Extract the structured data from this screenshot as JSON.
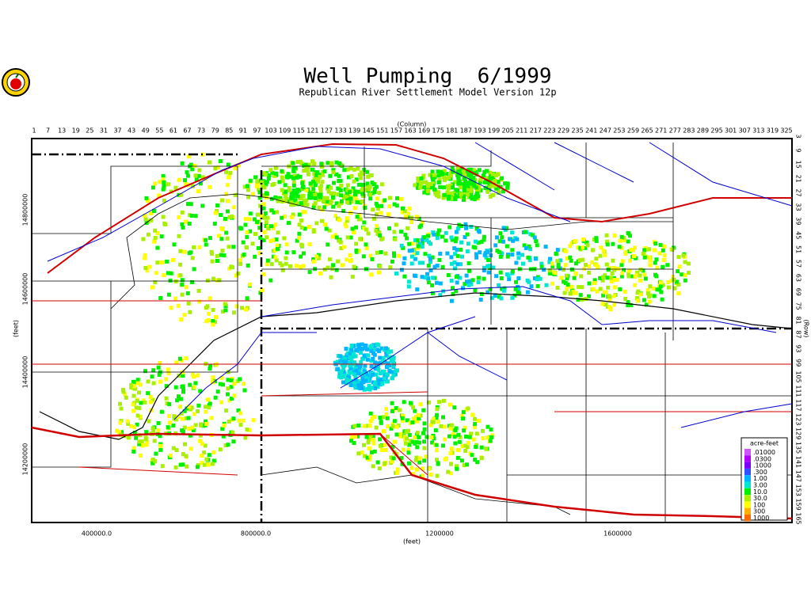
{
  "header": {
    "title": "Well Pumping  6/1999",
    "subtitle": "Republican River Settlement Model Version 12p"
  },
  "axes": {
    "column_label": "(Column)",
    "row_label": "(Row)",
    "x_label": "(feet)",
    "y_label": "(feet)",
    "column_ticks": [
      1,
      7,
      13,
      19,
      25,
      31,
      37,
      43,
      49,
      55,
      61,
      67,
      73,
      79,
      85,
      91,
      97,
      103,
      109,
      115,
      121,
      127,
      133,
      139,
      145,
      151,
      157,
      163,
      169,
      175,
      181,
      187,
      193,
      199,
      205,
      211,
      217,
      223,
      229,
      235,
      241,
      247,
      253,
      259,
      265,
      271,
      277,
      283,
      289,
      295,
      301,
      307,
      313,
      319,
      325
    ],
    "row_ticks": [
      3,
      9,
      15,
      21,
      27,
      33,
      39,
      45,
      51,
      57,
      63,
      69,
      75,
      81,
      87,
      93,
      99,
      105,
      111,
      117,
      123,
      129,
      135,
      141,
      147,
      153,
      159,
      165
    ],
    "x_ticks": [
      "400000.0",
      "800000.0",
      "1200000",
      "1600000"
    ],
    "y_ticks": [
      "14800000",
      "14600000",
      "14400000",
      "14200000"
    ]
  },
  "legend": {
    "title": "acre-feet",
    "items": [
      {
        "label": ".01000",
        "color": "#cc55ff"
      },
      {
        "label": ".0300",
        "color": "#b000ff"
      },
      {
        "label": ".1000",
        "color": "#7a00ff"
      },
      {
        "label": ".300",
        "color": "#3050ff"
      },
      {
        "label": "1.00",
        "color": "#00b4ff"
      },
      {
        "label": "3.00",
        "color": "#00e6d2"
      },
      {
        "label": "10.0",
        "color": "#00f000"
      },
      {
        "label": "30.0",
        "color": "#a8f000"
      },
      {
        "label": "100",
        "color": "#ffff00"
      },
      {
        "label": "300",
        "color": "#ffb000"
      },
      {
        "label": "1000",
        "color": "#ff6a00"
      }
    ]
  }
}
